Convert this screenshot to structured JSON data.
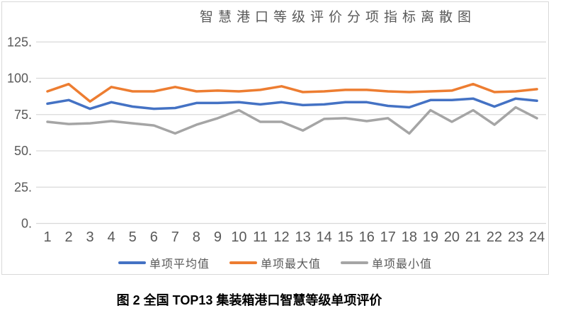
{
  "figure": {
    "caption": "图 2 全国 TOP13 集装箱港口智慧等级单项评价"
  },
  "chart_data": {
    "type": "line",
    "title": "智慧港口等级评价分项指标离散图",
    "xlabel": "",
    "ylabel": "",
    "categories": [
      "1",
      "2",
      "3",
      "4",
      "5",
      "6",
      "7",
      "8",
      "9",
      "10",
      "11",
      "12",
      "13",
      "14",
      "15",
      "16",
      "17",
      "18",
      "19",
      "20",
      "21",
      "22",
      "23",
      "24"
    ],
    "series": [
      {
        "name": "单项平均值",
        "color": "#4472C4",
        "values": [
          82.5,
          85,
          79,
          83.5,
          80.5,
          79,
          79.5,
          83,
          83,
          83.5,
          82,
          83.5,
          81.5,
          82,
          83.5,
          83.5,
          81,
          80,
          85,
          85,
          86,
          80.5,
          86,
          84.5
        ]
      },
      {
        "name": "单项最大值",
        "color": "#ED7D31",
        "values": [
          91,
          96,
          84,
          94,
          91,
          91,
          94,
          91,
          91.5,
          91,
          92,
          94.5,
          90.5,
          91,
          92,
          92,
          91,
          90.5,
          91,
          91.5,
          96,
          90.5,
          91,
          92.5
        ]
      },
      {
        "name": "单项最小值",
        "color": "#A5A5A5",
        "values": [
          70,
          68.5,
          69,
          70.5,
          69,
          67.5,
          62,
          68,
          72.5,
          78,
          70,
          70,
          64,
          72,
          72.5,
          70.5,
          72.5,
          62,
          78,
          70,
          78,
          68,
          80,
          72.5
        ]
      }
    ],
    "ylim": [
      0,
      125
    ],
    "y_ticks": [
      0,
      25,
      50,
      75,
      100,
      125
    ],
    "y_tick_labels": [
      "0.",
      "25.",
      "50.",
      "75.",
      "100.",
      "125."
    ],
    "grid": true,
    "legend_position": "bottom",
    "colors": {
      "grid": "#d9d9d9",
      "tick_text": "#595959",
      "title_text": "#595959",
      "frame_border": "#d9d9d9"
    }
  }
}
